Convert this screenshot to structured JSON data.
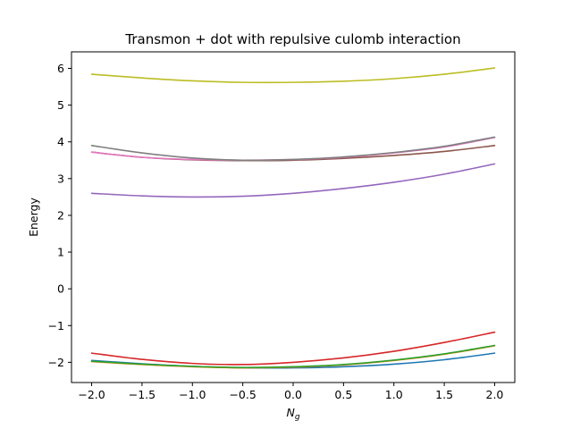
{
  "chart_data": {
    "type": "line",
    "title": "Transmon + dot with repulsive culomb interaction",
    "xlabel": "N",
    "xlabel_subscript": "g",
    "ylabel": "Energy",
    "xlim": [
      -2.2,
      2.2
    ],
    "ylim": [
      -2.55,
      6.45
    ],
    "xticks": [
      -2.0,
      -1.5,
      -1.0,
      -0.5,
      0.0,
      0.5,
      1.0,
      1.5,
      2.0
    ],
    "xtick_labels": [
      "−2.0",
      "−1.5",
      "−1.0",
      "−0.5",
      "0.0",
      "0.5",
      "1.0",
      "1.5",
      "2.0"
    ],
    "yticks": [
      -2,
      -1,
      0,
      1,
      2,
      3,
      4,
      5,
      6
    ],
    "ytick_labels": [
      "−2",
      "−1",
      "0",
      "1",
      "2",
      "3",
      "4",
      "5",
      "6"
    ],
    "grid": false,
    "legend": "none",
    "x": [
      -2.0,
      -1.5,
      -1.0,
      -0.5,
      0.0,
      0.5,
      1.0,
      1.5,
      2.0
    ],
    "series": [
      {
        "color": "#1f77b4",
        "values": [
          -1.95,
          -2.04,
          -2.11,
          -2.15,
          -2.15,
          -2.12,
          -2.05,
          -1.93,
          -1.75
        ]
      },
      {
        "color": "#ff7f0e",
        "values": [
          -1.98,
          -2.06,
          -2.12,
          -2.15,
          -2.13,
          -2.07,
          -1.95,
          -1.78,
          -1.55
        ]
      },
      {
        "color": "#2ca02c",
        "values": [
          -1.97,
          -2.05,
          -2.11,
          -2.14,
          -2.12,
          -2.06,
          -1.94,
          -1.77,
          -1.54
        ]
      },
      {
        "color": "#d62728",
        "values": [
          -1.75,
          -1.92,
          -2.03,
          -2.06,
          -2.0,
          -1.88,
          -1.7,
          -1.46,
          -1.18
        ]
      },
      {
        "color": "#9467bd",
        "values": [
          2.6,
          2.53,
          2.5,
          2.52,
          2.6,
          2.73,
          2.9,
          3.12,
          3.4
        ]
      },
      {
        "color": "#8c564b",
        "values": [
          3.72,
          3.58,
          3.51,
          3.49,
          3.5,
          3.55,
          3.63,
          3.74,
          3.9
        ]
      },
      {
        "color": "#e377c2",
        "values": [
          3.72,
          3.58,
          3.52,
          3.5,
          3.52,
          3.58,
          3.7,
          3.86,
          4.12
        ]
      },
      {
        "color": "#7f7f7f",
        "values": [
          3.9,
          3.7,
          3.56,
          3.5,
          3.52,
          3.59,
          3.71,
          3.88,
          4.13
        ]
      },
      {
        "color": "#bcbd22",
        "values": [
          5.84,
          5.74,
          5.66,
          5.62,
          5.62,
          5.65,
          5.72,
          5.84,
          6.01
        ]
      }
    ]
  }
}
